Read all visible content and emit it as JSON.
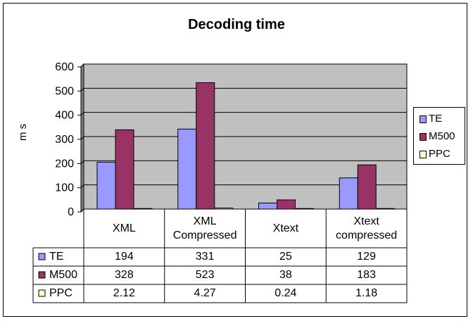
{
  "chart_data": {
    "type": "bar",
    "title": "Decoding time",
    "ylabel": "m s",
    "xlabel": "",
    "categories": [
      "XML",
      "XML Compressed",
      "Xtext",
      "Xtext compressed"
    ],
    "series": [
      {
        "name": "TE",
        "values": [
          194,
          331,
          25,
          129
        ],
        "value_labels": [
          "194",
          "331",
          "25",
          "129"
        ],
        "color": "#9999ff"
      },
      {
        "name": "M500",
        "values": [
          328,
          523,
          38,
          183
        ],
        "value_labels": [
          "328",
          "523",
          "38",
          "183"
        ],
        "color": "#993366"
      },
      {
        "name": "PPC",
        "values": [
          2.12,
          4.27,
          0.24,
          1.18
        ],
        "value_labels": [
          "2.12",
          "4.27",
          "0.24",
          "1.18"
        ],
        "color": "#ffffcc"
      }
    ],
    "ylim": [
      0,
      600
    ],
    "yticks": [
      "0",
      "100",
      "200",
      "300",
      "400",
      "500",
      "600"
    ],
    "grid": true,
    "legend_position": "right",
    "data_table": true,
    "plot_background": "#c0c0c0"
  }
}
